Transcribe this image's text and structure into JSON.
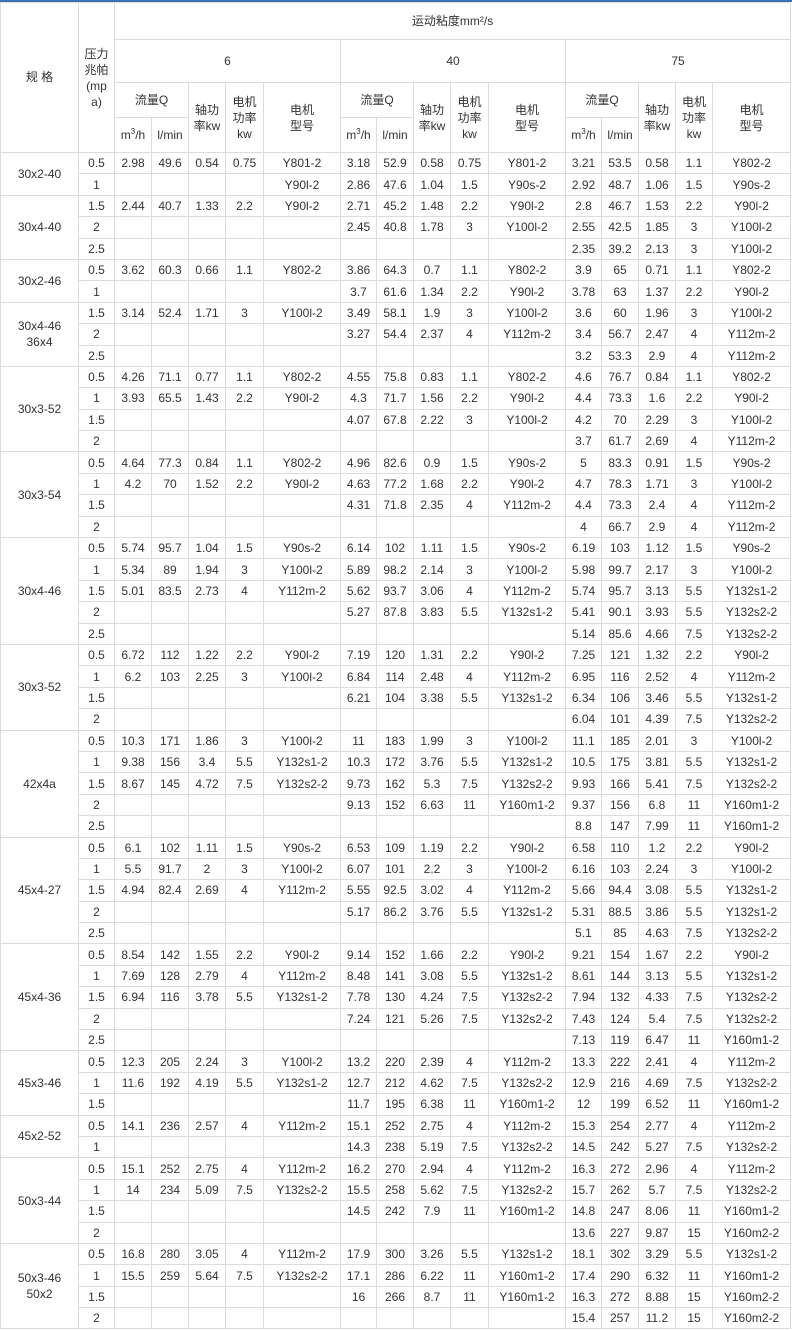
{
  "header": {
    "spec": "规 格",
    "pressure": "压力兆帕(mpa)",
    "viscosity": "运动粘度mm²/s",
    "viscosity_groups": [
      "6",
      "40",
      "75"
    ],
    "flow": "流量Q",
    "shaft_power": "轴功率kw",
    "motor_power": "电机功率kw",
    "motor_model": "电机型号",
    "unit_m3h": {
      "base": "m",
      "sup": "3",
      "rest": "/h"
    },
    "unit_lmin": "l/min"
  },
  "accent_color": "#3a72b0",
  "groups": [
    {
      "spec": "30x2-40",
      "rows": [
        [
          "0.5",
          "2.98",
          "49.6",
          "0.54",
          "0.75",
          "Y801-2",
          "3.18",
          "52.9",
          "0.58",
          "0.75",
          "Y801-2",
          "3.21",
          "53.5",
          "0.58",
          "1.1",
          "Y802-2"
        ],
        [
          "1",
          "",
          "",
          "",
          "",
          "Y90l-2",
          "2.86",
          "47.6",
          "1.04",
          "1.5",
          "Y90s-2",
          "2.92",
          "48.7",
          "1.06",
          "1.5",
          "Y90s-2"
        ]
      ]
    },
    {
      "spec": "30x4-40",
      "rows": [
        [
          "1.5",
          "2.44",
          "40.7",
          "1.33",
          "2.2",
          "Y90l-2",
          "2.71",
          "45.2",
          "1.48",
          "2.2",
          "Y90l-2",
          "2.8",
          "46.7",
          "1.53",
          "2.2",
          "Y90l-2"
        ],
        [
          "2",
          "",
          "",
          "",
          "",
          "",
          "2.45",
          "40.8",
          "1.78",
          "3",
          "Y100l-2",
          "2.55",
          "42.5",
          "1.85",
          "3",
          "Y100l-2"
        ],
        [
          "2.5",
          "",
          "",
          "",
          "",
          "",
          "",
          "",
          "",
          "",
          "",
          "2.35",
          "39.2",
          "2.13",
          "3",
          "Y100l-2"
        ]
      ]
    },
    {
      "spec": "30x2-46",
      "rows": [
        [
          "0.5",
          "3.62",
          "60.3",
          "0.66",
          "1.1",
          "Y802-2",
          "3.86",
          "64.3",
          "0.7",
          "1.1",
          "Y802-2",
          "3.9",
          "65",
          "0.71",
          "1.1",
          "Y802-2"
        ],
        [
          "1",
          "",
          "",
          "",
          "",
          "",
          "3.7",
          "61.6",
          "1.34",
          "2.2",
          "Y90l-2",
          "3.78",
          "63",
          "1.37",
          "2.2",
          "Y90l-2"
        ]
      ]
    },
    {
      "spec": "30x4-46\n36x4",
      "rows": [
        [
          "1.5",
          "3.14",
          "52.4",
          "1.71",
          "3",
          "Y100l-2",
          "3.49",
          "58.1",
          "1.9",
          "3",
          "Y100l-2",
          "3.6",
          "60",
          "1.96",
          "3",
          "Y100l-2"
        ],
        [
          "2",
          "",
          "",
          "",
          "",
          "",
          "3.27",
          "54.4",
          "2.37",
          "4",
          "Y112m-2",
          "3.4",
          "56.7",
          "2.47",
          "4",
          "Y112m-2"
        ],
        [
          "2.5",
          "",
          "",
          "",
          "",
          "",
          "",
          "",
          "",
          "",
          "",
          "3.2",
          "53.3",
          "2.9",
          "4",
          "Y112m-2"
        ]
      ]
    },
    {
      "spec": "30x3-52",
      "rows": [
        [
          "0.5",
          "4.26",
          "71.1",
          "0.77",
          "1.1",
          "Y802-2",
          "4.55",
          "75.8",
          "0.83",
          "1.1",
          "Y802-2",
          "4.6",
          "76.7",
          "0.84",
          "1.1",
          "Y802-2"
        ],
        [
          "1",
          "3.93",
          "65.5",
          "1.43",
          "2.2",
          "Y90l-2",
          "4.3",
          "71.7",
          "1.56",
          "2.2",
          "Y90l-2",
          "4.4",
          "73.3",
          "1.6",
          "2.2",
          "Y90l-2"
        ],
        [
          "1.5",
          "",
          "",
          "",
          "",
          "",
          "4.07",
          "67.8",
          "2.22",
          "3",
          "Y100l-2",
          "4.2",
          "70",
          "2.29",
          "3",
          "Y100l-2"
        ],
        [
          "2",
          "",
          "",
          "",
          "",
          "",
          "",
          "",
          "",
          "",
          "",
          "3.7",
          "61.7",
          "2.69",
          "4",
          "Y112m-2"
        ]
      ]
    },
    {
      "spec": "30x3-54",
      "rows": [
        [
          "0.5",
          "4.64",
          "77.3",
          "0.84",
          "1.1",
          "Y802-2",
          "4.96",
          "82.6",
          "0.9",
          "1.5",
          "Y90s-2",
          "5",
          "83.3",
          "0.91",
          "1.5",
          "Y90s-2"
        ],
        [
          "1",
          "4.2",
          "70",
          "1.52",
          "2.2",
          "Y90l-2",
          "4.63",
          "77.2",
          "1.68",
          "2.2",
          "Y90l-2",
          "4.7",
          "78.3",
          "1.71",
          "3",
          "Y100l-2"
        ],
        [
          "1.5",
          "",
          "",
          "",
          "",
          "",
          "4.31",
          "71.8",
          "2.35",
          "4",
          "Y112m-2",
          "4.4",
          "73.3",
          "2.4",
          "4",
          "Y112m-2"
        ],
        [
          "2",
          "",
          "",
          "",
          "",
          "",
          "",
          "",
          "",
          "",
          "",
          "4",
          "66.7",
          "2.9",
          "4",
          "Y112m-2"
        ]
      ]
    },
    {
      "spec": "30x4-46",
      "rows": [
        [
          "0.5",
          "5.74",
          "95.7",
          "1.04",
          "1.5",
          "Y90s-2",
          "6.14",
          "102",
          "1.11",
          "1.5",
          "Y90s-2",
          "6.19",
          "103",
          "1.12",
          "1.5",
          "Y90s-2"
        ],
        [
          "1",
          "5.34",
          "89",
          "1.94",
          "3",
          "Y100l-2",
          "5.89",
          "98.2",
          "2.14",
          "3",
          "Y100l-2",
          "5.98",
          "99.7",
          "2.17",
          "3",
          "Y100l-2"
        ],
        [
          "1.5",
          "5.01",
          "83.5",
          "2.73",
          "4",
          "Y112m-2",
          "5.62",
          "93.7",
          "3.06",
          "4",
          "Y112m-2",
          "5.74",
          "95.7",
          "3.13",
          "5.5",
          "Y132s1-2"
        ],
        [
          "2",
          "",
          "",
          "",
          "",
          "",
          "5.27",
          "87.8",
          "3.83",
          "5.5",
          "Y132s1-2",
          "5.41",
          "90.1",
          "3.93",
          "5.5",
          "Y132s2-2"
        ],
        [
          "2.5",
          "",
          "",
          "",
          "",
          "",
          "",
          "",
          "",
          "",
          "",
          "5.14",
          "85.6",
          "4.66",
          "7.5",
          "Y132s2-2"
        ]
      ]
    },
    {
      "spec": "30x3-52",
      "rows": [
        [
          "0.5",
          "6.72",
          "112",
          "1.22",
          "2.2",
          "Y90l-2",
          "7.19",
          "120",
          "1.31",
          "2.2",
          "Y90l-2",
          "7.25",
          "121",
          "1.32",
          "2.2",
          "Y90l-2"
        ],
        [
          "1",
          "6.2",
          "103",
          "2.25",
          "3",
          "Y100l-2",
          "6.84",
          "114",
          "2.48",
          "4",
          "Y112m-2",
          "6.95",
          "116",
          "2.52",
          "4",
          "Y112m-2"
        ],
        [
          "1.5",
          "",
          "",
          "",
          "",
          "",
          "6.21",
          "104",
          "3.38",
          "5.5",
          "Y132s1-2",
          "6.34",
          "106",
          "3.46",
          "5.5",
          "Y132s1-2"
        ],
        [
          "2",
          "",
          "",
          "",
          "",
          "",
          "",
          "",
          "",
          "",
          "",
          "6.04",
          "101",
          "4.39",
          "7.5",
          "Y132s2-2"
        ]
      ]
    },
    {
      "spec": "42x4a",
      "rows": [
        [
          "0.5",
          "10.3",
          "171",
          "1.86",
          "3",
          "Y100l-2",
          "11",
          "183",
          "1.99",
          "3",
          "Y100l-2",
          "11.1",
          "185",
          "2.01",
          "3",
          "Y100l-2"
        ],
        [
          "1",
          "9.38",
          "156",
          "3.4",
          "5.5",
          "Y132s1-2",
          "10.3",
          "172",
          "3.76",
          "5.5",
          "Y132s1-2",
          "10.5",
          "175",
          "3.81",
          "5.5",
          "Y132s1-2"
        ],
        [
          "1.5",
          "8.67",
          "145",
          "4.72",
          "7.5",
          "Y132s2-2",
          "9.73",
          "162",
          "5.3",
          "7.5",
          "Y132s2-2",
          "9.93",
          "166",
          "5.41",
          "7.5",
          "Y132s2-2"
        ],
        [
          "2",
          "",
          "",
          "",
          "",
          "",
          "9.13",
          "152",
          "6.63",
          "11",
          "Y160m1-2",
          "9.37",
          "156",
          "6.8",
          "11",
          "Y160m1-2"
        ],
        [
          "2.5",
          "",
          "",
          "",
          "",
          "",
          "",
          "",
          "",
          "",
          "",
          "8.8",
          "147",
          "7.99",
          "11",
          "Y160m1-2"
        ]
      ]
    },
    {
      "spec": "45x4-27",
      "rows": [
        [
          "0.5",
          "6.1",
          "102",
          "1.11",
          "1.5",
          "Y90s-2",
          "6.53",
          "109",
          "1.19",
          "2.2",
          "Y90l-2",
          "6.58",
          "110",
          "1.2",
          "2.2",
          "Y90l-2"
        ],
        [
          "1",
          "5.5",
          "91.7",
          "2",
          "3",
          "Y100l-2",
          "6.07",
          "101",
          "2.2",
          "3",
          "Y100l-2",
          "6.16",
          "103",
          "2.24",
          "3",
          "Y100l-2"
        ],
        [
          "1.5",
          "4.94",
          "82.4",
          "2.69",
          "4",
          "Y112m-2",
          "5.55",
          "92.5",
          "3.02",
          "4",
          "Y112m-2",
          "5.66",
          "94.4",
          "3.08",
          "5.5",
          "Y132s1-2"
        ],
        [
          "2",
          "",
          "",
          "",
          "",
          "",
          "5.17",
          "86.2",
          "3.76",
          "5.5",
          "Y132s1-2",
          "5.31",
          "88.5",
          "3.86",
          "5.5",
          "Y132s1-2"
        ],
        [
          "2.5",
          "",
          "",
          "",
          "",
          "",
          "",
          "",
          "",
          "",
          "",
          "5.1",
          "85",
          "4.63",
          "7.5",
          "Y132s2-2"
        ]
      ]
    },
    {
      "spec": "45x4-36",
      "rows": [
        [
          "0.5",
          "8.54",
          "142",
          "1.55",
          "2.2",
          "Y90l-2",
          "9.14",
          "152",
          "1.66",
          "2.2",
          "Y90l-2",
          "9.21",
          "154",
          "1.67",
          "2.2",
          "Y90l-2"
        ],
        [
          "1",
          "7.69",
          "128",
          "2.79",
          "4",
          "Y112m-2",
          "8.48",
          "141",
          "3.08",
          "5.5",
          "Y132s1-2",
          "8.61",
          "144",
          "3.13",
          "5.5",
          "Y132s1-2"
        ],
        [
          "1.5",
          "6.94",
          "116",
          "3.78",
          "5.5",
          "Y132s1-2",
          "7.78",
          "130",
          "4.24",
          "7.5",
          "Y132s2-2",
          "7.94",
          "132",
          "4.33",
          "7.5",
          "Y132s2-2"
        ],
        [
          "2",
          "",
          "",
          "",
          "",
          "",
          "7.24",
          "121",
          "5.26",
          "7.5",
          "Y132s2-2",
          "7.43",
          "124",
          "5.4",
          "7.5",
          "Y132s2-2"
        ],
        [
          "2.5",
          "",
          "",
          "",
          "",
          "",
          "",
          "",
          "",
          "",
          "",
          "7.13",
          "119",
          "6.47",
          "11",
          "Y160m1-2"
        ]
      ]
    },
    {
      "spec": "45x3-46",
      "rows": [
        [
          "0.5",
          "12.3",
          "205",
          "2.24",
          "3",
          "Y100l-2",
          "13.2",
          "220",
          "2.39",
          "4",
          "Y112m-2",
          "13.3",
          "222",
          "2.41",
          "4",
          "Y112m-2"
        ],
        [
          "1",
          "11.6",
          "192",
          "4.19",
          "5.5",
          "Y132s1-2",
          "12.7",
          "212",
          "4.62",
          "7.5",
          "Y132s2-2",
          "12.9",
          "216",
          "4.69",
          "7.5",
          "Y132s2-2"
        ],
        [
          "1.5",
          "",
          "",
          "",
          "",
          "",
          "11.7",
          "195",
          "6.38",
          "11",
          "Y160m1-2",
          "12",
          "199",
          "6.52",
          "11",
          "Y160m1-2"
        ]
      ]
    },
    {
      "spec": "45x2-52",
      "rows": [
        [
          "0.5",
          "14.1",
          "236",
          "2.57",
          "4",
          "Y112m-2",
          "15.1",
          "252",
          "2.75",
          "4",
          "Y112m-2",
          "15.3",
          "254",
          "2.77",
          "4",
          "Y112m-2"
        ],
        [
          "1",
          "",
          "",
          "",
          "",
          "",
          "14.3",
          "238",
          "5.19",
          "7.5",
          "Y132s2-2",
          "14.5",
          "242",
          "5.27",
          "7.5",
          "Y132s2-2"
        ]
      ]
    },
    {
      "spec": "50x3-44",
      "rows": [
        [
          "0.5",
          "15.1",
          "252",
          "2.75",
          "4",
          "Y112m-2",
          "16.2",
          "270",
          "2.94",
          "4",
          "Y112m-2",
          "16.3",
          "272",
          "2.96",
          "4",
          "Y112m-2"
        ],
        [
          "1",
          "14",
          "234",
          "5.09",
          "7.5",
          "Y132s2-2",
          "15.5",
          "258",
          "5.62",
          "7.5",
          "Y132s2-2",
          "15.7",
          "262",
          "5.7",
          "7.5",
          "Y132s2-2"
        ],
        [
          "1.5",
          "",
          "",
          "",
          "",
          "",
          "14.5",
          "242",
          "7.9",
          "11",
          "Y160m1-2",
          "14.8",
          "247",
          "8.06",
          "11",
          "Y160m1-2"
        ],
        [
          "2",
          "",
          "",
          "",
          "",
          "",
          "",
          "",
          "",
          "",
          "",
          "13.6",
          "227",
          "9.87",
          "15",
          "Y160m2-2"
        ]
      ]
    },
    {
      "spec": "50x3-46\n50x2",
      "rows": [
        [
          "0.5",
          "16.8",
          "280",
          "3.05",
          "4",
          "Y112m-2",
          "17.9",
          "300",
          "3.26",
          "5.5",
          "Y132s1-2",
          "18.1",
          "302",
          "3.29",
          "5.5",
          "Y132s1-2"
        ],
        [
          "1",
          "15.5",
          "259",
          "5.64",
          "7.5",
          "Y132s2-2",
          "17.1",
          "286",
          "6.22",
          "11",
          "Y160m1-2",
          "17.4",
          "290",
          "6.32",
          "11",
          "Y160m1-2"
        ],
        [
          "1.5",
          "",
          "",
          "",
          "",
          "",
          "16",
          "266",
          "8.7",
          "11",
          "Y160m1-2",
          "16.3",
          "272",
          "8.88",
          "15",
          "Y160m2-2"
        ],
        [
          "2",
          "",
          "",
          "",
          "",
          "",
          "",
          "",
          "",
          "",
          "",
          "15.4",
          "257",
          "11.2",
          "15",
          "Y160m2-2"
        ]
      ]
    }
  ]
}
